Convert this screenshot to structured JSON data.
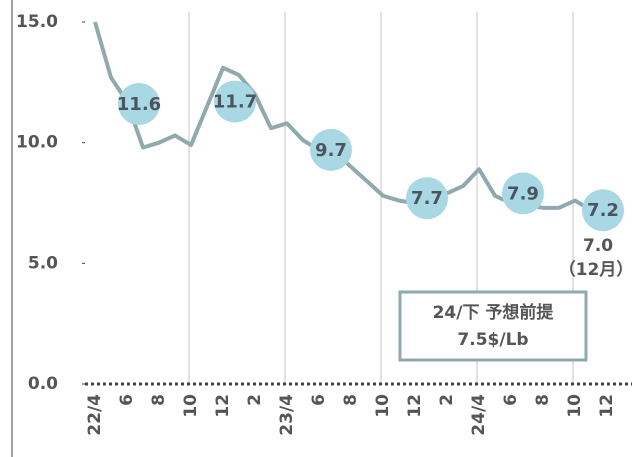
{
  "chart_data": {
    "type": "line",
    "categories": [
      "22/4",
      null,
      "6",
      null,
      "8",
      null,
      "10",
      null,
      "12",
      null,
      "2",
      null,
      "23/4",
      null,
      "6",
      null,
      "8",
      null,
      "10",
      null,
      "12",
      null,
      "2",
      null,
      "24/4",
      null,
      "6",
      null,
      "8",
      null,
      "10",
      null,
      "12"
    ],
    "values": [
      15.0,
      12.7,
      11.7,
      9.8,
      10.0,
      10.3,
      9.9,
      11.5,
      13.1,
      12.8,
      12.0,
      10.6,
      10.8,
      10.1,
      9.7,
      9.6,
      9.0,
      8.4,
      7.8,
      7.6,
      7.5,
      7.4,
      7.9,
      8.2,
      8.9,
      7.8,
      7.5,
      7.4,
      7.3,
      7.3,
      7.6,
      7.2,
      7.0
    ],
    "color": "#8fa9ad",
    "bubble_values": [
      null,
      null,
      null,
      11.6,
      null,
      null,
      null,
      null,
      null,
      11.7,
      null,
      null,
      null,
      null,
      null,
      9.7,
      null,
      null,
      null,
      null,
      null,
      7.7,
      null,
      null,
      null,
      null,
      null,
      7.9,
      null,
      null,
      null,
      null,
      7.2
    ],
    "bubble_color": "#a9d8e5",
    "ylim": [
      0,
      15
    ],
    "yticks": [
      {
        "value": 0,
        "label": "0.0"
      },
      {
        "value": 5,
        "label": "5.0"
      },
      {
        "value": 10,
        "label": "10.0"
      },
      {
        "value": 15,
        "label": "15.0"
      }
    ],
    "grid": true,
    "annotations": {
      "last_value": "7.0",
      "last_month": "（12月）",
      "box_line1": "24/下 予想前提",
      "box_line2": "7.5$/Lb"
    }
  }
}
